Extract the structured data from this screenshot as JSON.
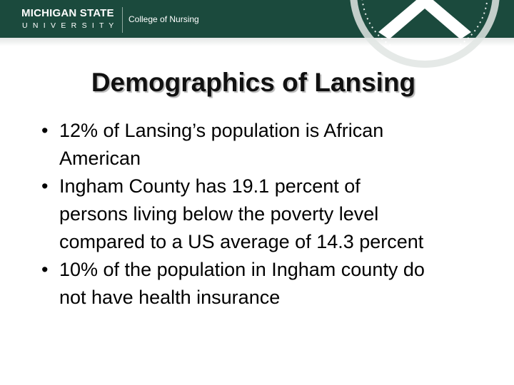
{
  "header": {
    "brand_line1": "MICHIGAN STATE",
    "brand_line2": "U N I V E R S I T Y",
    "unit": "College of Nursing"
  },
  "title": "Demographics of Lansing",
  "bullets": [
    [
      "12% of Lansing’s population is African",
      "American"
    ],
    [
      "Ingham County has 19.1 percent of",
      "persons living below the poverty level",
      "compared to a US average of 14.3 percent"
    ],
    [
      "10% of the population in Ingham county do",
      "not have health insurance"
    ]
  ]
}
